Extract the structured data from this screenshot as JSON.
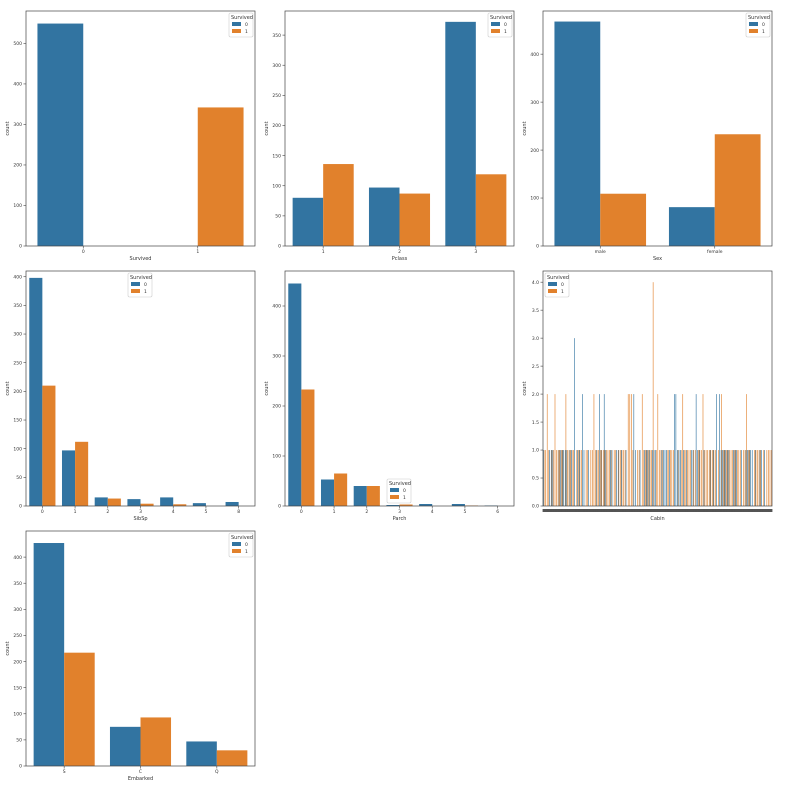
{
  "colors": {
    "survived_0": "#3274a1",
    "survived_1": "#e1812c",
    "axis": "#444444",
    "legend_border": "#cccccc"
  },
  "legend": {
    "title": "Survived",
    "labels": [
      "0",
      "1"
    ]
  },
  "chart_data": [
    {
      "type": "bar",
      "xlabel": "Survived",
      "ylabel": "count",
      "ylim": [
        0,
        580
      ],
      "yticks": [
        0,
        100,
        200,
        300,
        400,
        500
      ],
      "legend_position": "top-right",
      "categories": [
        "0",
        "1"
      ],
      "series": [
        {
          "name": "0",
          "values": [
            549,
            0
          ]
        },
        {
          "name": "1",
          "values": [
            0,
            342
          ]
        }
      ]
    },
    {
      "type": "bar",
      "xlabel": "Pclass",
      "ylabel": "count",
      "ylim": [
        0,
        390
      ],
      "yticks": [
        0,
        50,
        100,
        150,
        200,
        250,
        300,
        350
      ],
      "legend_position": "top-right",
      "categories": [
        "1",
        "2",
        "3"
      ],
      "series": [
        {
          "name": "0",
          "values": [
            80,
            97,
            372
          ]
        },
        {
          "name": "1",
          "values": [
            136,
            87,
            119
          ]
        }
      ]
    },
    {
      "type": "bar",
      "xlabel": "Sex",
      "ylabel": "count",
      "ylim": [
        0,
        490
      ],
      "yticks": [
        0,
        100,
        200,
        300,
        400
      ],
      "legend_position": "top-right",
      "categories": [
        "male",
        "female"
      ],
      "series": [
        {
          "name": "0",
          "values": [
            468,
            81
          ]
        },
        {
          "name": "1",
          "values": [
            109,
            233
          ]
        }
      ]
    },
    {
      "type": "bar",
      "xlabel": "SibSp",
      "ylabel": "count",
      "ylim": [
        0,
        410
      ],
      "yticks": [
        0,
        50,
        100,
        150,
        200,
        250,
        300,
        350,
        400
      ],
      "legend_position": "top-center",
      "categories": [
        "0",
        "1",
        "2",
        "3",
        "4",
        "5",
        "8"
      ],
      "series": [
        {
          "name": "0",
          "values": [
            398,
            97,
            15,
            12,
            15,
            5,
            7
          ]
        },
        {
          "name": "1",
          "values": [
            210,
            112,
            13,
            4,
            3,
            0,
            0
          ]
        }
      ]
    },
    {
      "type": "bar",
      "xlabel": "Parch",
      "ylabel": "count",
      "ylim": [
        0,
        470
      ],
      "yticks": [
        0,
        100,
        200,
        300,
        400
      ],
      "legend_position": "lower-center",
      "categories": [
        "0",
        "1",
        "2",
        "3",
        "4",
        "5",
        "6"
      ],
      "series": [
        {
          "name": "0",
          "values": [
            445,
            53,
            40,
            2,
            4,
            4,
            1
          ]
        },
        {
          "name": "1",
          "values": [
            233,
            65,
            40,
            3,
            0,
            1,
            0
          ]
        }
      ]
    },
    {
      "type": "bar",
      "xlabel": "Cabin",
      "ylabel": "count",
      "ylim": [
        0,
        4.2
      ],
      "yticks": [
        0.0,
        0.5,
        1.0,
        1.5,
        2.0,
        2.5,
        3.0,
        3.5,
        4.0
      ],
      "legend_position": "top-left",
      "n_categories": 147,
      "tick_labels_overlapping": true
    },
    {
      "type": "bar",
      "xlabel": "Embarked",
      "ylabel": "count",
      "ylim": [
        0,
        450
      ],
      "yticks": [
        0,
        50,
        100,
        150,
        200,
        250,
        300,
        350,
        400
      ],
      "legend_position": "top-right",
      "categories": [
        "S",
        "C",
        "Q"
      ],
      "series": [
        {
          "name": "0",
          "values": [
            427,
            75,
            47
          ]
        },
        {
          "name": "1",
          "values": [
            217,
            93,
            30
          ]
        }
      ]
    }
  ]
}
